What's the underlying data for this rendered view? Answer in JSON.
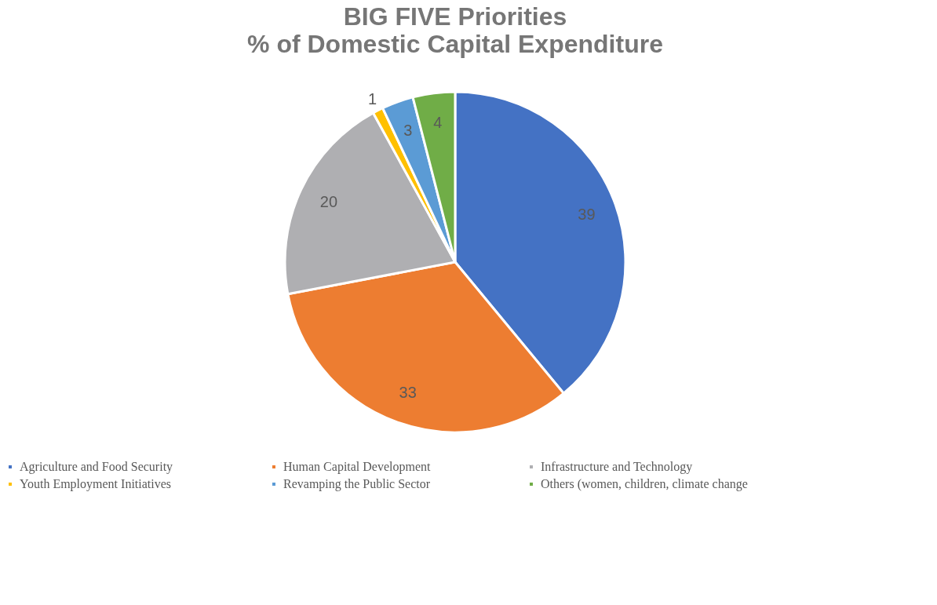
{
  "chart_data": {
    "type": "pie",
    "title": "BIG FIVE Priorities",
    "subtitle": "% of Domestic Capital Expenditure",
    "categories": [
      "Agriculture and Food Security",
      "Human Capital Development",
      "Infrastructure and Technology",
      "Youth Employment Initiatives",
      "Revamping the Public Sector",
      "Others (women, children, climate change"
    ],
    "values": [
      39,
      33,
      20,
      1,
      3,
      4
    ],
    "colors": [
      "#4472c4",
      "#ed7d31",
      "#afafb2",
      "#ffc000",
      "#5b9bd5",
      "#70ad47"
    ],
    "data_labels": true,
    "legend": "bottom"
  }
}
